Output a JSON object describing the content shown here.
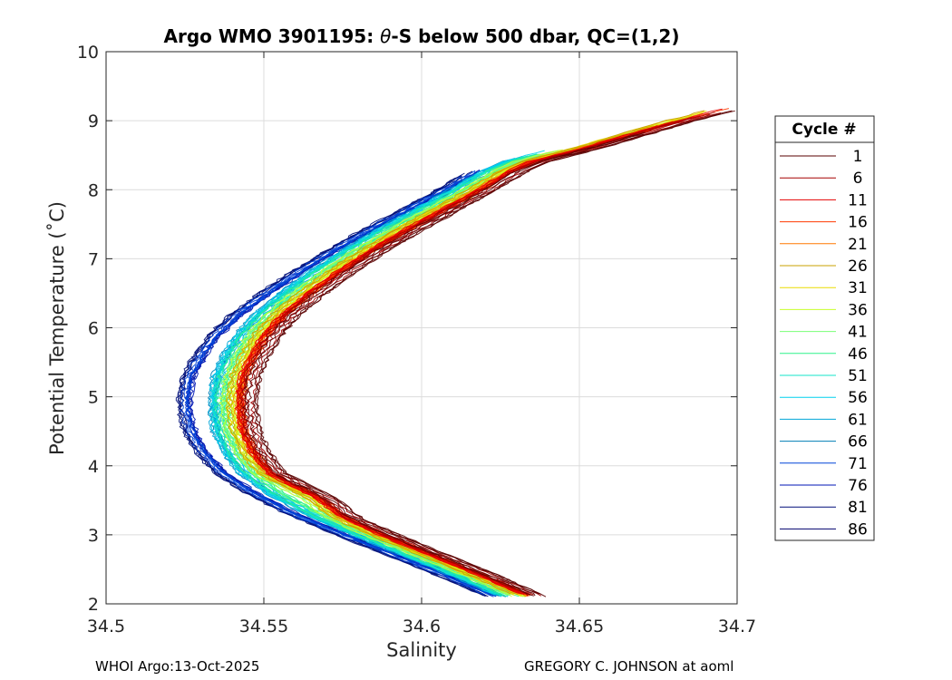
{
  "chart_data": {
    "type": "line",
    "title_prefix": "Argo WMO 3901195: ",
    "title_symbol": "θ",
    "title_suffix": "-S below 500 dbar,  QC=(1,2)",
    "xlabel": "Salinity",
    "ylabel": "Potential Temperature (˚C)",
    "xlim": [
      34.5,
      34.7
    ],
    "ylim": [
      2,
      10
    ],
    "xticks": [
      34.5,
      34.55,
      34.6,
      34.65,
      34.7
    ],
    "xtick_labels": [
      "34.5",
      "34.55",
      "34.6",
      "34.65",
      "34.7"
    ],
    "yticks": [
      2,
      3,
      4,
      5,
      6,
      7,
      8,
      9,
      10
    ],
    "ytick_labels": [
      "2",
      "3",
      "4",
      "5",
      "6",
      "7",
      "8",
      "9",
      "10"
    ],
    "grid": true,
    "legend_position": "outside-right",
    "legend_title": "Cycle #",
    "legend_entries": [
      "1",
      "6",
      "11",
      "16",
      "21",
      "26",
      "31",
      "36",
      "41",
      "46",
      "51",
      "56",
      "61",
      "66",
      "71",
      "76",
      "81",
      "86"
    ],
    "legend_colors": [
      "#5a0000",
      "#a50000",
      "#e40000",
      "#ff3a00",
      "#ff7800",
      "#c8a000",
      "#eadc00",
      "#c8ff2c",
      "#7aff76",
      "#2ef28a",
      "#14e6c8",
      "#00d0ee",
      "#00a6d8",
      "#007eb4",
      "#0044d8",
      "#0016b4",
      "#000f7a",
      "#00006e"
    ],
    "series_note": "Theta-S profiles for cycles 1-86 (one line per cycle, colored by cycle number)",
    "profile_template": {
      "theta": [
        2.1,
        2.4,
        2.7,
        3.0,
        3.3,
        3.6,
        3.9,
        4.2,
        4.5,
        4.8,
        5.0,
        5.3,
        5.6,
        5.9,
        6.2,
        6.5,
        6.8,
        7.1,
        7.4,
        7.7,
        8.0,
        8.3
      ],
      "salinity": [
        34.628,
        34.613,
        34.597,
        34.581,
        34.566,
        34.554,
        34.545,
        34.54,
        34.537,
        34.536,
        34.536,
        34.537,
        34.54,
        34.544,
        34.55,
        34.558,
        34.567,
        34.577,
        34.588,
        34.6,
        34.612,
        34.623
      ]
    },
    "warm_extension": {
      "theta": [
        8.4,
        8.6,
        8.8,
        9.0,
        9.2
      ],
      "salinity": [
        34.628,
        34.645,
        34.66,
        34.675,
        34.692
      ]
    }
  },
  "footer": {
    "left": "WHOI Argo:13-Oct-2025",
    "right": "GREGORY C. JOHNSON at aoml"
  }
}
